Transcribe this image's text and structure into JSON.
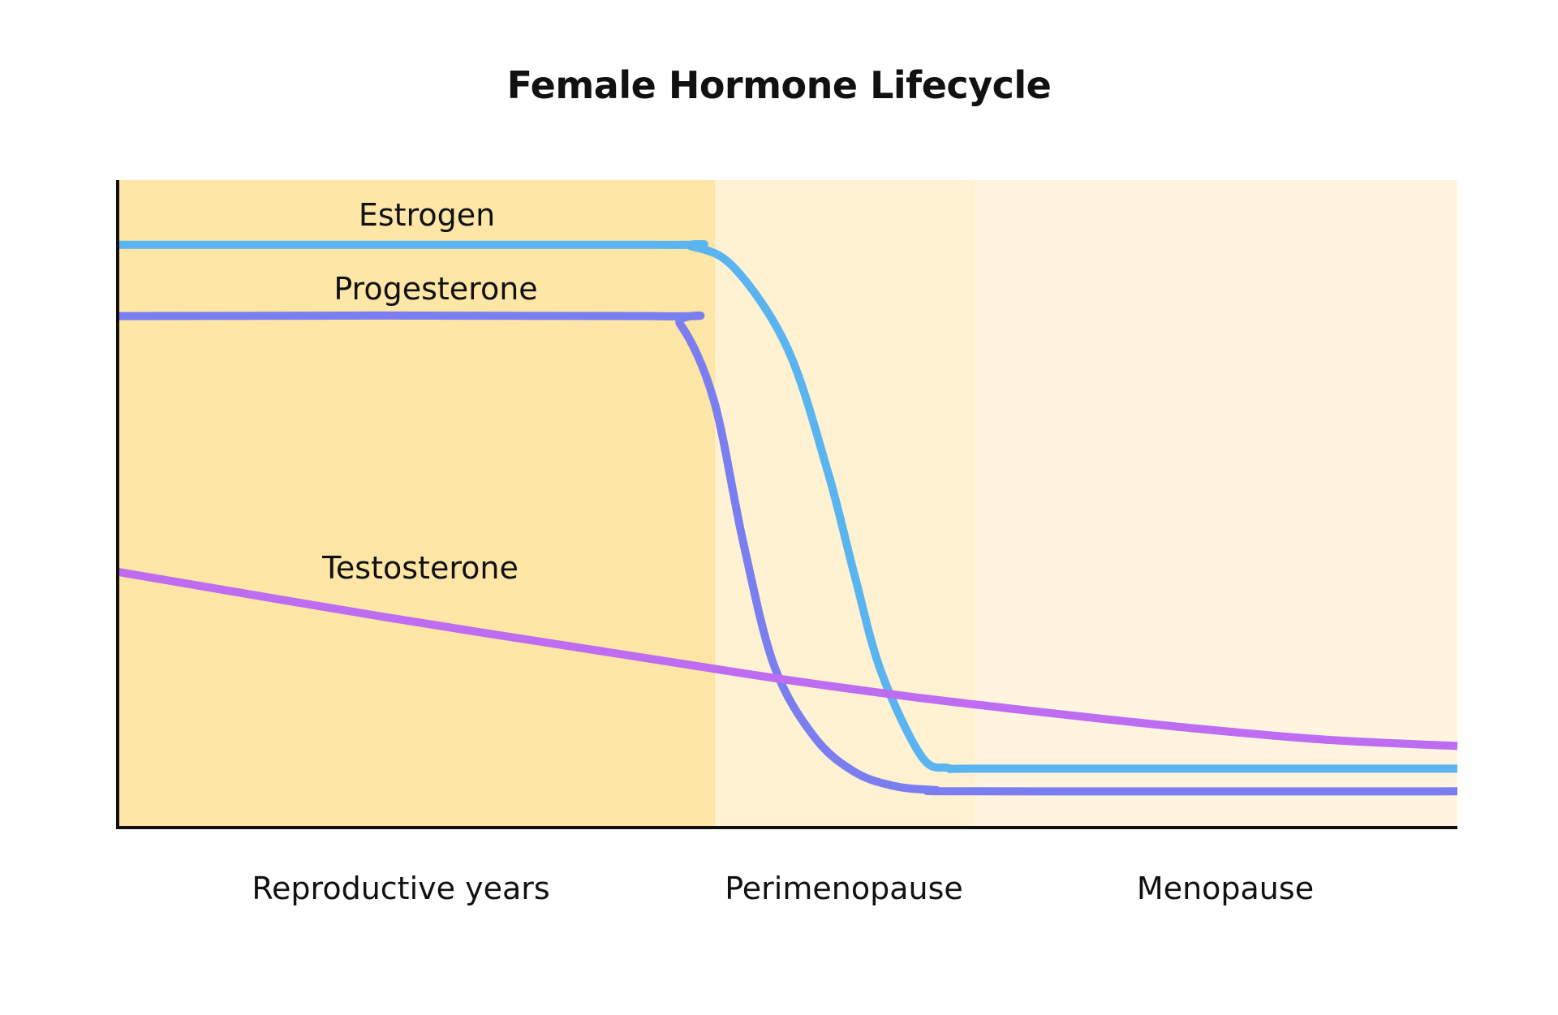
{
  "chart_data": {
    "type": "line",
    "title": "Female Hormone Lifecycle",
    "xlabel": "",
    "ylabel": "",
    "grid": false,
    "legend": "inline labels",
    "ylim": [
      0,
      100
    ],
    "phases": [
      {
        "name": "Reproductive years",
        "start": 0,
        "end": 44.6,
        "color": "#FDE6A6"
      },
      {
        "name": "Perimenopause",
        "start": 44.6,
        "end": 64,
        "color": "#FEF2D2"
      },
      {
        "name": "Menopause",
        "start": 64,
        "end": 100,
        "color": "#FEF4E0"
      }
    ],
    "series": [
      {
        "name": "Estrogen",
        "color": "#5AB4F0",
        "x": [
          0,
          40,
          42.8,
          46,
          50,
          53,
          55,
          57,
          60,
          62,
          64,
          80,
          100
        ],
        "y": [
          90,
          90,
          89.8,
          86.5,
          74,
          55,
          39,
          24,
          11,
          9.2,
          9.1,
          9.1,
          9.1
        ]
      },
      {
        "name": "Progesterone",
        "color": "#7B7EF0",
        "x": [
          0,
          40,
          42,
          44.5,
          46.7,
          49,
          52,
          55,
          58,
          61,
          64,
          100
        ],
        "y": [
          79,
          79,
          77.7,
          66,
          44,
          25,
          14,
          8.6,
          6.4,
          5.8,
          5.6,
          5.6
        ]
      },
      {
        "name": "Testosterone",
        "color": "#BE6CF2",
        "x": [
          0,
          20,
          40,
          50,
          60,
          70,
          80,
          90,
          100
        ],
        "y": [
          39.5,
          32.5,
          26,
          22.8,
          20,
          17.6,
          15.4,
          13.6,
          12.6
        ]
      }
    ],
    "series_labels": {
      "estrogen": "Estrogen",
      "progesterone": "Progesterone",
      "testosterone": "Testosterone"
    },
    "phase_labels": {
      "reproductive": "Reproductive years",
      "perimenopause": "Perimenopause",
      "menopause": "Menopause"
    }
  }
}
